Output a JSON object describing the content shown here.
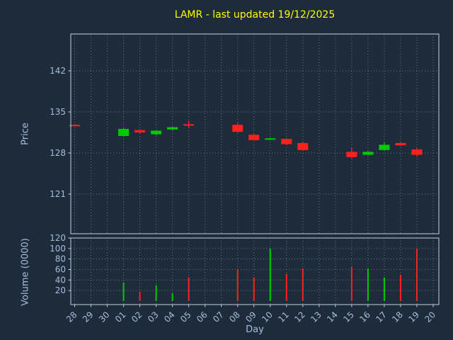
{
  "title": "LAMR - last updated 19/12/2025",
  "colors": {
    "background": "#1e2b3a",
    "text": "#a6bede",
    "title": "#ffff00",
    "grid": "#9db1cc",
    "spine": "#c2cfe3",
    "up": "#00cc00",
    "down": "#ff2020"
  },
  "chart_data": {
    "type": "candlestick",
    "subtype": "ohlc-with-volume-subpanel",
    "title": "LAMR - last updated 19/12/2025",
    "xlabel": "Day",
    "price_axis_label": "Price",
    "volume_axis_label": "Volume (0000)",
    "grid": "dotted",
    "legend_position": "none",
    "x_categories": [
      "28",
      "29",
      "30",
      "01",
      "02",
      "03",
      "04",
      "05",
      "06",
      "07",
      "08",
      "09",
      "10",
      "11",
      "12",
      "13",
      "14",
      "15",
      "16",
      "17",
      "18",
      "19",
      "20"
    ],
    "price_ticks": [
      142,
      135,
      128,
      121
    ],
    "price_range_approx": [
      114,
      148.5
    ],
    "volume_ticks": [
      120,
      100,
      80,
      60,
      40,
      20
    ],
    "volume_range": [
      0,
      130
    ],
    "candles": [
      {
        "day": "28",
        "open": 132.8,
        "high": 132.9,
        "low": 132.6,
        "close": 132.7,
        "volume": 0
      },
      {
        "day": "01",
        "open": 130.9,
        "high": 132.3,
        "low": 130.8,
        "close": 132.1,
        "volume": 35
      },
      {
        "day": "02",
        "open": 131.9,
        "high": 132.0,
        "low": 131.3,
        "close": 131.5,
        "volume": 18
      },
      {
        "day": "03",
        "open": 131.2,
        "high": 131.9,
        "low": 131.0,
        "close": 131.8,
        "volume": 30
      },
      {
        "day": "04",
        "open": 132.0,
        "high": 132.5,
        "low": 131.9,
        "close": 132.4,
        "volume": 15
      },
      {
        "day": "05",
        "open": 132.9,
        "high": 133.5,
        "low": 132.3,
        "close": 132.8,
        "volume": 45
      },
      {
        "day": "08",
        "open": 132.8,
        "high": 133.1,
        "low": 131.5,
        "close": 131.6,
        "volume": 60
      },
      {
        "day": "09",
        "open": 131.1,
        "high": 131.2,
        "low": 130.1,
        "close": 130.2,
        "volume": 45
      },
      {
        "day": "10",
        "open": 130.3,
        "high": 130.6,
        "low": 130.2,
        "close": 130.5,
        "volume": 100
      },
      {
        "day": "11",
        "open": 130.4,
        "high": 130.5,
        "low": 129.4,
        "close": 129.5,
        "volume": 52
      },
      {
        "day": "12",
        "open": 129.7,
        "high": 129.8,
        "low": 128.4,
        "close": 128.5,
        "volume": 62
      },
      {
        "day": "15",
        "open": 128.2,
        "high": 129.0,
        "low": 127.1,
        "close": 127.3,
        "volume": 65
      },
      {
        "day": "16",
        "open": 127.7,
        "high": 128.3,
        "low": 127.6,
        "close": 128.2,
        "volume": 62
      },
      {
        "day": "17",
        "open": 128.5,
        "high": 129.8,
        "low": 128.4,
        "close": 129.4,
        "volume": 45
      },
      {
        "day": "18",
        "open": 129.7,
        "high": 129.8,
        "low": 129.2,
        "close": 129.3,
        "volume": 50
      },
      {
        "day": "19",
        "open": 128.6,
        "high": 128.9,
        "low": 127.4,
        "close": 127.7,
        "volume": 100
      }
    ]
  }
}
